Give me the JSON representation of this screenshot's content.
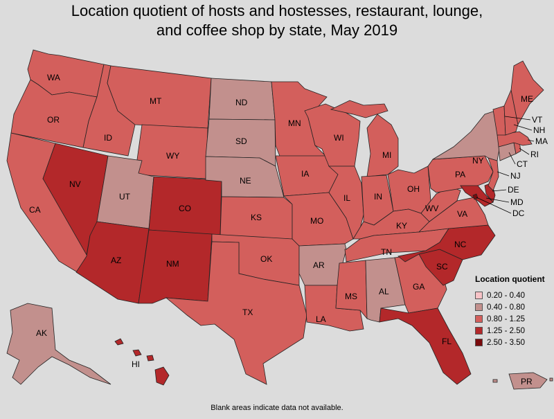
{
  "title_line1": "Location quotient of hosts and hostesses, restaurant, lounge,",
  "title_line2": "and coffee shop by state, May 2019",
  "legend": {
    "title": "Location quotient",
    "ranges": [
      {
        "label": "0.20 - 0.40",
        "color": "#f7c3c7"
      },
      {
        "label": "0.40 - 0.80",
        "color": "#c2908d"
      },
      {
        "label": "0.80 - 1.25",
        "color": "#d35f5c"
      },
      {
        "label": "1.25 - 2.50",
        "color": "#b3282a"
      },
      {
        "label": "2.50 - 3.50",
        "color": "#7a0a0c"
      }
    ]
  },
  "states": {
    "WA": "0.80 - 1.25",
    "OR": "0.80 - 1.25",
    "CA": "0.80 - 1.25",
    "ID": "0.80 - 1.25",
    "NV": "1.25 - 2.50",
    "MT": "0.80 - 1.25",
    "WY": "0.80 - 1.25",
    "UT": "0.40 - 0.80",
    "AZ": "1.25 - 2.50",
    "CO": "1.25 - 2.50",
    "NM": "1.25 - 2.50",
    "ND": "0.40 - 0.80",
    "SD": "0.40 - 0.80",
    "NE": "0.40 - 0.80",
    "KS": "0.80 - 1.25",
    "OK": "0.80 - 1.25",
    "TX": "0.80 - 1.25",
    "MN": "0.80 - 1.25",
    "IA": "0.80 - 1.25",
    "MO": "0.80 - 1.25",
    "AR": "0.40 - 0.80",
    "LA": "0.80 - 1.25",
    "WI": "0.80 - 1.25",
    "IL": "0.80 - 1.25",
    "MS": "0.80 - 1.25",
    "MI": "0.80 - 1.25",
    "IN": "0.80 - 1.25",
    "KY": "0.80 - 1.25",
    "TN": "0.80 - 1.25",
    "AL": "0.40 - 0.80",
    "OH": "0.80 - 1.25",
    "WV": "0.80 - 1.25",
    "GA": "0.80 - 1.25",
    "FL": "1.25 - 2.50",
    "SC": "1.25 - 2.50",
    "NC": "1.25 - 2.50",
    "VA": "0.80 - 1.25",
    "PA": "0.80 - 1.25",
    "NY": "0.40 - 0.80",
    "NJ": "0.80 - 1.25",
    "DE": "1.25 - 2.50",
    "MD": "1.25 - 2.50",
    "DC": "2.50 - 3.50",
    "CT": "0.40 - 0.80",
    "RI": "0.80 - 1.25",
    "MA": "0.80 - 1.25",
    "VT": "0.80 - 1.25",
    "NH": "0.80 - 1.25",
    "ME": "0.80 - 1.25",
    "AK": "0.40 - 0.80",
    "HI": "1.25 - 2.50",
    "PR": "0.40 - 0.80"
  },
  "note": "Blank areas indicate data not available."
}
